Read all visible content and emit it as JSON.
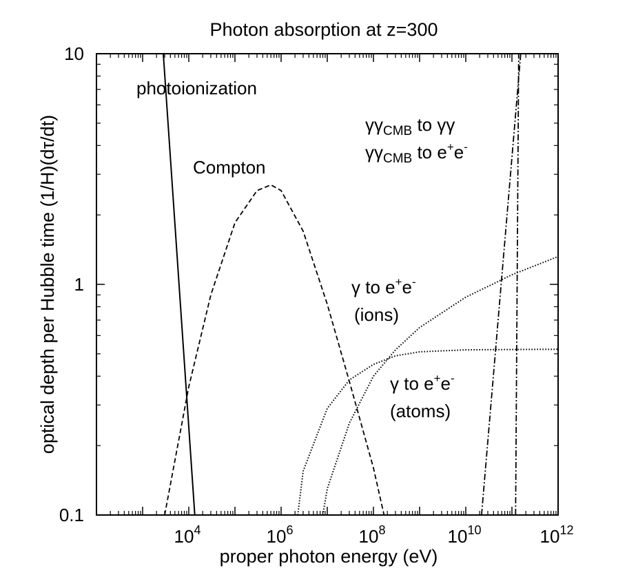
{
  "chart_data": {
    "type": "line",
    "title": "Photon absorption at z=300",
    "xlabel": "proper photon energy (eV)",
    "ylabel": "optical depth per Hubble time (1/H)(dτ/dt)",
    "x_scale": "log",
    "y_scale": "log",
    "xlim": [
      100,
      1000000000000
    ],
    "ylim": [
      0.1,
      10
    ],
    "grid": false,
    "x_ticks": [
      {
        "base": "10",
        "exp": "4",
        "value": 10000
      },
      {
        "base": "10",
        "exp": "6",
        "value": 1000000
      },
      {
        "base": "10",
        "exp": "8",
        "value": 100000000
      },
      {
        "base": "10",
        "exp": "10",
        "value": 10000000000
      },
      {
        "base": "10",
        "exp": "12",
        "value": 1000000000000
      }
    ],
    "y_ticks": [
      {
        "label": "0.1",
        "value": 0.1
      },
      {
        "label": "1",
        "value": 1
      },
      {
        "label": "10",
        "value": 10
      }
    ],
    "series": [
      {
        "name": "photoionization",
        "style": "solid",
        "x": [
          2800,
          13500
        ],
        "y": [
          10,
          0.1
        ]
      },
      {
        "name": "Compton",
        "style": "dashed",
        "x": [
          3000,
          10000,
          30000,
          100000,
          300000,
          600000,
          1000000,
          3000000,
          10000000,
          30000000,
          100000000,
          170000000
        ],
        "y": [
          0.1,
          0.36,
          0.9,
          1.85,
          2.55,
          2.7,
          2.55,
          1.7,
          0.82,
          0.38,
          0.16,
          0.1
        ]
      },
      {
        "name": "γ to e⁺e⁻ (atoms)",
        "style": "dotted",
        "x": [
          2300000,
          3000000,
          10000000,
          30000000,
          100000000,
          300000000,
          1000000000,
          10000000000,
          100000000000,
          1000000000000
        ],
        "y": [
          0.1,
          0.155,
          0.29,
          0.385,
          0.45,
          0.49,
          0.51,
          0.52,
          0.522,
          0.523
        ]
      },
      {
        "name": "γ to e⁺e⁻ (ions)",
        "style": "dotted",
        "x": [
          8000000,
          10000000,
          30000000,
          100000000,
          300000000,
          1000000000,
          10000000000,
          100000000000,
          1000000000000
        ],
        "y": [
          0.1,
          0.13,
          0.25,
          0.4,
          0.52,
          0.65,
          0.88,
          1.1,
          1.32
        ]
      },
      {
        "name": "γγCMB to γγ",
        "style": "dashdot",
        "x": [
          120000000000,
          140000000000
        ],
        "y": [
          0.1,
          10
        ]
      },
      {
        "name": "γγCMB to e⁺e⁻",
        "style": "dashdot",
        "x": [
          22000000000,
          155000000000
        ],
        "y": [
          0.1,
          10
        ]
      }
    ],
    "annotations": [
      {
        "key": "photoionization",
        "text": "photoionization"
      },
      {
        "key": "compton",
        "text": "Compton"
      },
      {
        "key": "gg_gg",
        "gamma": "γγ",
        "sub": "CMB",
        "rest": " to γγ"
      },
      {
        "key": "gg_ee",
        "gamma": "γγ",
        "sub": "CMB",
        "rest": " to e",
        "sup1": "+",
        "mid": "e",
        "sup2": "-"
      },
      {
        "key": "ions_1",
        "gamma": "γ",
        "rest": " to e",
        "sup1": "+",
        "mid": "e",
        "sup2": "-"
      },
      {
        "key": "ions_2",
        "text": "(ions)"
      },
      {
        "key": "atoms_1",
        "gamma": "γ",
        "rest": " to e",
        "sup1": "+",
        "mid": "e",
        "sup2": "-"
      },
      {
        "key": "atoms_2",
        "text": "(atoms)"
      }
    ]
  }
}
